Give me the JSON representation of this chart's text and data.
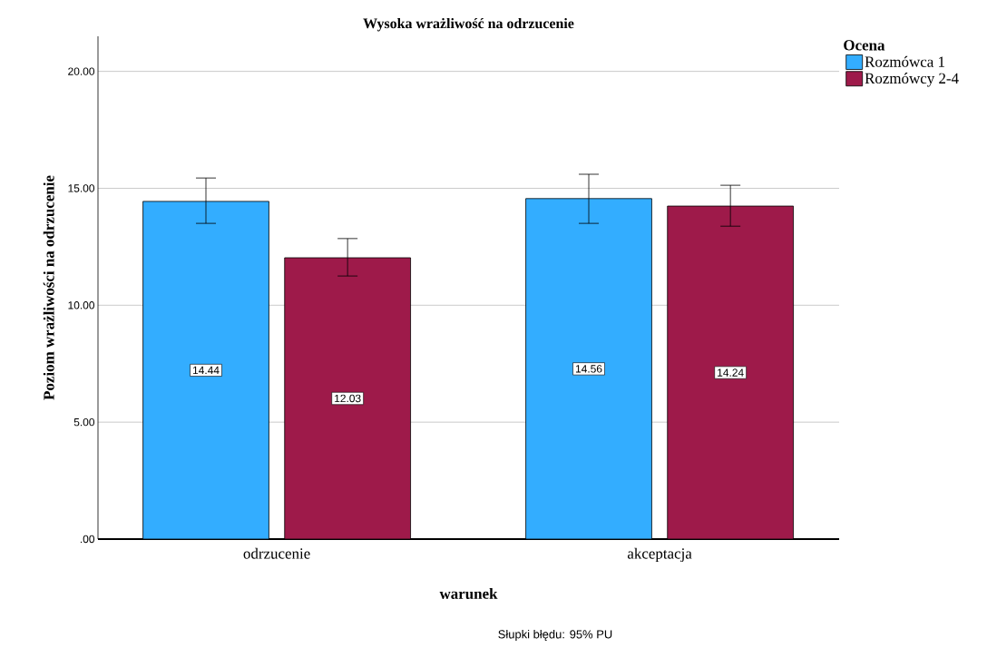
{
  "chart_data": {
    "type": "bar",
    "title": "Wysoka wrażliwość na odrzucenie",
    "xlabel": "warunek",
    "ylabel": "Poziom wrażliwości na odrzucenie",
    "legend_title": "Ocena",
    "categories": [
      "odrzucenie",
      "akceptacja"
    ],
    "series": [
      {
        "name": "Rozmówca 1",
        "color": "#33adff",
        "values": [
          14.44,
          14.56
        ],
        "errors": [
          [
            13.5,
            15.44
          ],
          [
            13.5,
            15.6
          ]
        ]
      },
      {
        "name": "Rozmówcy 2-4",
        "color": "#9e1a4a",
        "values": [
          12.03,
          14.24
        ],
        "errors": [
          [
            11.25,
            12.85
          ],
          [
            13.38,
            15.13
          ]
        ]
      }
    ],
    "ylim": [
      0,
      21.5
    ],
    "yticks": [
      {
        "value": 0,
        "label": ".00"
      },
      {
        "value": 5,
        "label": "5.00"
      },
      {
        "value": 10,
        "label": "10.00"
      },
      {
        "value": 15,
        "label": "15.00"
      },
      {
        "value": 20,
        "label": "20.00"
      }
    ],
    "grid": "y",
    "legend": "top right",
    "data_labels": true,
    "annotations": [
      "Słupki błędu: 95% PU"
    ]
  }
}
